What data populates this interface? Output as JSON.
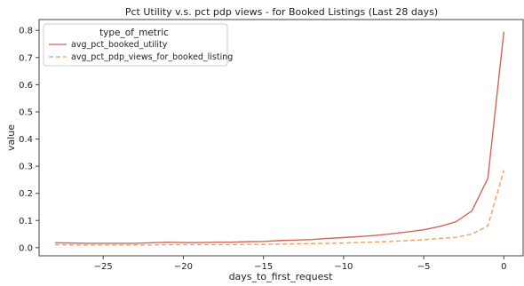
{
  "chart_data": {
    "type": "line",
    "title": "Pct Utility v.s. pct pdp views - for Booked Listings (Last 28 days)",
    "xlabel": "days_to_first_request",
    "ylabel": "value",
    "xlim": [
      -29,
      1.2
    ],
    "ylim": [
      -0.03,
      0.84
    ],
    "xticks": [
      -25,
      -20,
      -15,
      -10,
      -5,
      0
    ],
    "xtick_labels": [
      "−25",
      "−20",
      "−15",
      "−10",
      "−5",
      "0"
    ],
    "yticks": [
      0.0,
      0.1,
      0.2,
      0.3,
      0.4,
      0.5,
      0.6,
      0.7,
      0.8
    ],
    "ytick_labels": [
      "0.0",
      "0.1",
      "0.2",
      "0.3",
      "0.4",
      "0.5",
      "0.6",
      "0.7",
      "0.8"
    ],
    "grid": false,
    "legend": {
      "title": "type_of_metric",
      "placement": "top-left"
    },
    "x": [
      -28,
      -27,
      -26,
      -25,
      -24,
      -23,
      -22,
      -21,
      -20,
      -19,
      -18,
      -17,
      -16,
      -15,
      -14,
      -13,
      -12,
      -11,
      -10,
      -9,
      -8,
      -7,
      -6,
      -5,
      -4,
      -3,
      -2,
      -1,
      0
    ],
    "series": [
      {
        "name": "avg_pct_booked_utility",
        "color": "#d0665a",
        "dash": "solid",
        "values": [
          0.018,
          0.017,
          0.016,
          0.016,
          0.016,
          0.016,
          0.018,
          0.02,
          0.019,
          0.019,
          0.02,
          0.02,
          0.022,
          0.023,
          0.026,
          0.028,
          0.03,
          0.034,
          0.037,
          0.041,
          0.045,
          0.051,
          0.058,
          0.066,
          0.078,
          0.095,
          0.135,
          0.255,
          0.795
        ]
      },
      {
        "name": "avg_pct_pdp_views_for_booked_listing",
        "color": "#f0a060",
        "dash": "dashed",
        "values": [
          0.011,
          0.01,
          0.01,
          0.01,
          0.01,
          0.01,
          0.01,
          0.011,
          0.011,
          0.011,
          0.011,
          0.011,
          0.012,
          0.012,
          0.013,
          0.014,
          0.015,
          0.016,
          0.017,
          0.019,
          0.021,
          0.023,
          0.026,
          0.029,
          0.034,
          0.038,
          0.05,
          0.08,
          0.285
        ]
      }
    ]
  }
}
